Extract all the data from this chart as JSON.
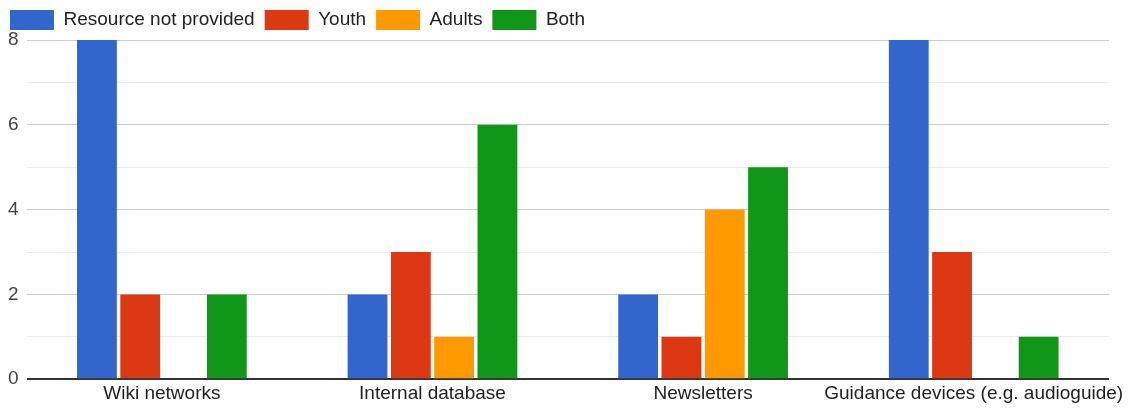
{
  "chart_data": {
    "type": "bar",
    "categories": [
      "Wiki networks",
      "Internal database",
      "Newsletters",
      "Guidance devices (e.g. audioguide)"
    ],
    "series": [
      {
        "name": "Resource not provided",
        "color": "#3366cc",
        "values": [
          8,
          2,
          2,
          8
        ]
      },
      {
        "name": "Youth",
        "color": "#dc3912",
        "values": [
          2,
          3,
          1,
          3
        ]
      },
      {
        "name": "Adults",
        "color": "#ff9900",
        "values": [
          0,
          1,
          4,
          0
        ]
      },
      {
        "name": "Both",
        "color": "#109618",
        "values": [
          2,
          6,
          5,
          1
        ]
      }
    ],
    "ylim": [
      0,
      8
    ],
    "yticks": [
      0,
      {
        "value": 1,
        "label": null
      },
      2,
      {
        "value": 3,
        "label": null
      },
      4,
      {
        "value": 5,
        "label": null
      },
      6,
      {
        "value": 7,
        "label": null
      },
      8
    ],
    "grid": "y",
    "legend": "top left"
  }
}
